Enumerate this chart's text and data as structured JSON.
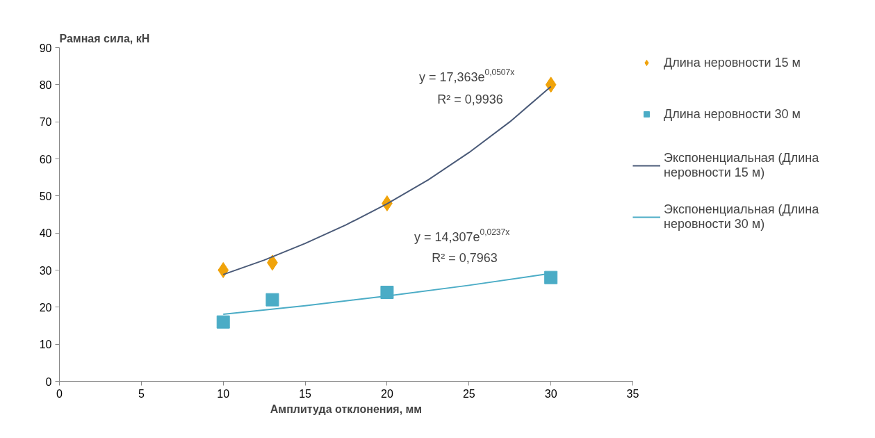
{
  "chart_data": {
    "type": "scatter",
    "xlabel": "Амплитуда отклонения, мм",
    "ylabel": "Рамная сила, кН",
    "xlim": [
      0,
      35
    ],
    "xticks": [
      0,
      5,
      10,
      15,
      20,
      25,
      30,
      35
    ],
    "ylim": [
      0,
      90
    ],
    "yticks": [
      0,
      10,
      20,
      30,
      40,
      50,
      60,
      70,
      80,
      90
    ],
    "grid": false,
    "legend": "right",
    "series": [
      {
        "name": "Длина неровности 15 м",
        "marker": "diamond",
        "color": "#f0a30a",
        "x": [
          10,
          13,
          20,
          30
        ],
        "values": [
          30,
          32,
          48,
          80
        ]
      },
      {
        "name": "Длина неровности 30 м",
        "marker": "square",
        "color": "#4bacc6",
        "x": [
          10,
          13,
          20,
          30
        ],
        "values": [
          16,
          22,
          24,
          28
        ]
      },
      {
        "name": "Экспоненциальная (Длина неровности 15 м)",
        "type": "line",
        "line_style": "solid",
        "color": "#4a5a78",
        "x": [
          10,
          12.5,
          15,
          17.5,
          20,
          22.5,
          25,
          27.5,
          30
        ],
        "values": [
          28.8,
          32.7,
          37.2,
          42.2,
          47.9,
          54.3,
          61.7,
          70.0,
          79.5
        ]
      },
      {
        "name": "Экспоненциальная (Длина неровности 30 м)",
        "type": "line",
        "line_style": "solid",
        "color": "#4bacc6",
        "x": [
          10,
          15,
          20,
          25,
          30
        ],
        "values": [
          18.1,
          20.4,
          23.0,
          25.9,
          29.1
        ]
      }
    ],
    "annotations": [
      "y = 17,363e$^{0,0507x}$",
      "R² = 0,9936",
      "y = 14,307e$^{0,0237x}$",
      "R² = 0,7963"
    ]
  }
}
